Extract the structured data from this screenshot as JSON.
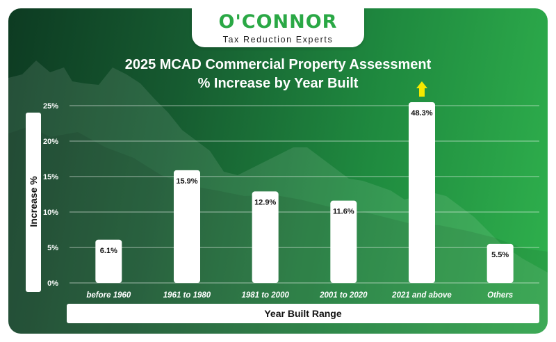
{
  "brand": {
    "name": "O'CONNOR",
    "tagline": "Tax Reduction Experts"
  },
  "colors": {
    "accent": "#2aa845",
    "arrow": "#f5e800",
    "bar": "#ffffff"
  },
  "chart_data": {
    "type": "bar",
    "title_line1": "2025 MCAD Commercial Property Assessment",
    "title_line2": "% Increase by Year Built",
    "xlabel": "Year Built Range",
    "ylabel": "Increase %",
    "ylim": [
      0,
      25
    ],
    "yticks": [
      0,
      5,
      10,
      15,
      20,
      25
    ],
    "ytick_labels": [
      "0%",
      "5%",
      "10%",
      "15%",
      "20%",
      "25%"
    ],
    "grid": true,
    "categories": [
      "before 1960",
      "1961 to 1980",
      "1981 to 2000",
      "2001 to 2020",
      "2021 and above",
      "Others"
    ],
    "values": [
      6.1,
      15.9,
      12.9,
      11.6,
      48.3,
      5.5
    ],
    "data_labels": [
      "6.1%",
      "15.9%",
      "12.9%",
      "11.6%",
      "48.3%",
      "5.5%"
    ],
    "clipped_note": "bar for 2021 and above exceeds axis (arrow shown)"
  }
}
